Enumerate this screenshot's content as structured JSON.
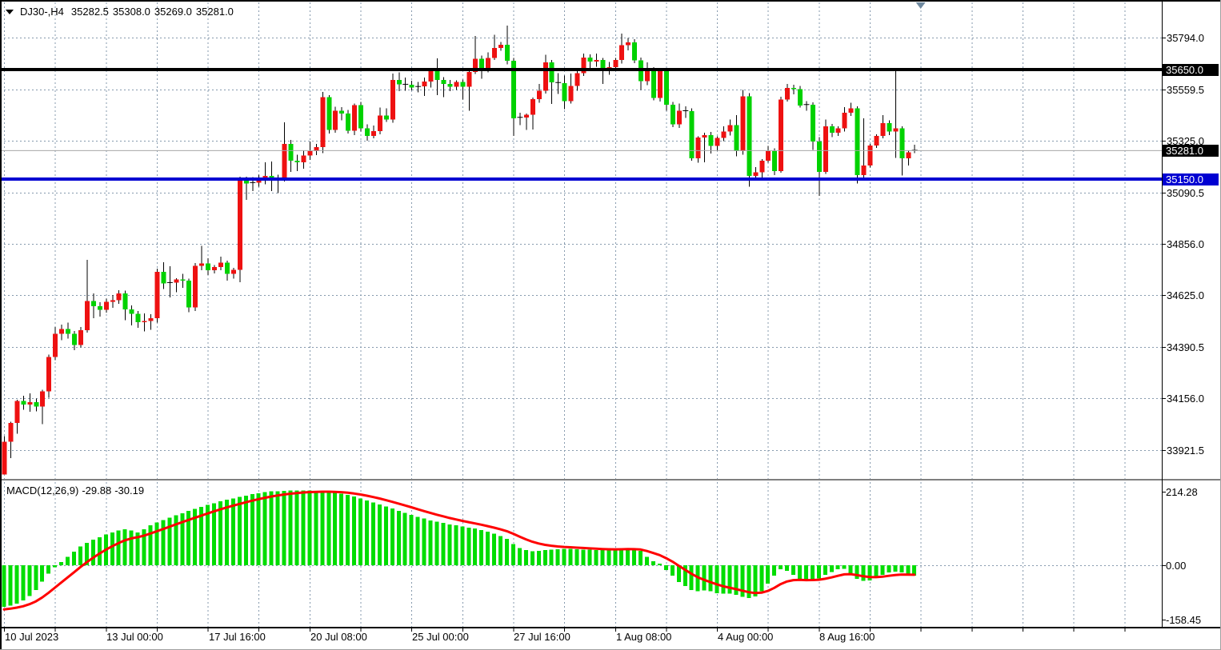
{
  "header": {
    "symbol_period": "DJ30-,H4",
    "open": "35282.5",
    "high": "35308.0",
    "low": "35269.0",
    "close": "35281.0"
  },
  "colors": {
    "bull_body": "#ee1111",
    "bear_body": "#00d200",
    "wick": "#000000",
    "macd_hist": "#00dd00",
    "macd_signal": "#ff0000",
    "resistance_line": "#000000",
    "support_line": "#0000d2",
    "current_price_line": "#a6a6a6",
    "grid": "#8599AD",
    "badge_black": "#000000",
    "badge_blue": "#0000d2",
    "shift_marker": "#708AA0"
  },
  "chart_data": {
    "type": "candlestick",
    "symbol": "DJ30-",
    "timeframe": "H4",
    "price_axis": {
      "labels": [
        "35794.0",
        "35559.5",
        "35325.0",
        "35090.5",
        "34856.0",
        "34625.0",
        "34390.5",
        "34156.0",
        "33921.5"
      ],
      "badges": [
        {
          "text": "35650.0",
          "value": 35650.0,
          "role": "resistance-level"
        },
        {
          "text": "35281.0",
          "value": 35281.0,
          "role": "current-price"
        },
        {
          "text": "35150.0",
          "value": 35150.0,
          "role": "support-level"
        }
      ]
    },
    "time_axis": {
      "labels": [
        {
          "text": "10 Jul 2023",
          "bar": 0
        },
        {
          "text": "13 Jul 00:00",
          "bar": 16
        },
        {
          "text": "17 Jul 16:00",
          "bar": 32
        },
        {
          "text": "20 Jul 08:00",
          "bar": 48
        },
        {
          "text": "25 Jul 00:00",
          "bar": 64
        },
        {
          "text": "27 Jul 16:00",
          "bar": 80
        },
        {
          "text": "1 Aug 08:00",
          "bar": 96
        },
        {
          "text": "4 Aug 00:00",
          "bar": 112
        },
        {
          "text": "8 Aug 16:00",
          "bar": 128
        }
      ]
    },
    "levels": {
      "resistance": 35650.0,
      "support": 35150.0,
      "current": 35281.0
    },
    "candles": [
      [
        33810,
        33985,
        33835,
        33960
      ],
      [
        33960,
        34050,
        33885,
        34045
      ],
      [
        34045,
        34150,
        33995,
        34145
      ],
      [
        34145,
        34168,
        34105,
        34128
      ],
      [
        34128,
        34180,
        34095,
        34140
      ],
      [
        34140,
        34155,
        34098,
        34120
      ],
      [
        34120,
        34195,
        34040,
        34188
      ],
      [
        34188,
        34355,
        34160,
        34345
      ],
      [
        34345,
        34480,
        34330,
        34450
      ],
      [
        34450,
        34492,
        34420,
        34472
      ],
      [
        34472,
        34500,
        34428,
        34450
      ],
      [
        34450,
        34462,
        34375,
        34398
      ],
      [
        34398,
        34480,
        34388,
        34466
      ],
      [
        34466,
        34785,
        34455,
        34598
      ],
      [
        34598,
        34632,
        34520,
        34575
      ],
      [
        34575,
        34592,
        34528,
        34558
      ],
      [
        34558,
        34610,
        34545,
        34595
      ],
      [
        34595,
        34625,
        34568,
        34602
      ],
      [
        34602,
        34648,
        34586,
        34632
      ],
      [
        34632,
        34645,
        34512,
        34560
      ],
      [
        34560,
        34578,
        34488,
        34540
      ],
      [
        34540,
        34552,
        34476,
        34502
      ],
      [
        34502,
        34542,
        34460,
        34508
      ],
      [
        34508,
        34538,
        34468,
        34520
      ],
      [
        34520,
        34745,
        34500,
        34730
      ],
      [
        34730,
        34775,
        34652,
        34678
      ],
      [
        34678,
        34756,
        34614,
        34682
      ],
      [
        34682,
        34702,
        34638,
        34696
      ],
      [
        34696,
        34722,
        34658,
        34690
      ],
      [
        34690,
        34700,
        34548,
        34570
      ],
      [
        34570,
        34770,
        34552,
        34758
      ],
      [
        34758,
        34848,
        34738,
        34768
      ],
      [
        34768,
        34792,
        34716,
        34738
      ],
      [
        34738,
        34762,
        34724,
        34752
      ],
      [
        34752,
        34800,
        34738,
        34772
      ],
      [
        34772,
        34782,
        34690,
        34722
      ],
      [
        34722,
        34748,
        34700,
        34740
      ],
      [
        34740,
        35162,
        34683,
        35155
      ],
      [
        35155,
        35162,
        35057,
        35132
      ],
      [
        35132,
        35160,
        35098,
        35136
      ],
      [
        35136,
        35172,
        35118,
        35148
      ],
      [
        35148,
        35228,
        35128,
        35166
      ],
      [
        35166,
        35232,
        35098,
        35152
      ],
      [
        35152,
        35172,
        35088,
        35158
      ],
      [
        35158,
        35410,
        35140,
        35312
      ],
      [
        35312,
        35330,
        35185,
        35235
      ],
      [
        35235,
        35262,
        35188,
        35228
      ],
      [
        35228,
        35282,
        35198,
        35258
      ],
      [
        35258,
        35322,
        35238,
        35278
      ],
      [
        35278,
        35312,
        35260,
        35296
      ],
      [
        35296,
        35548,
        35270,
        35523
      ],
      [
        35523,
        35532,
        35358,
        35375
      ],
      [
        35375,
        35480,
        35362,
        35462
      ],
      [
        35462,
        35478,
        35418,
        35450
      ],
      [
        35450,
        35466,
        35358,
        35372
      ],
      [
        35372,
        35495,
        35352,
        35488
      ],
      [
        35488,
        35502,
        35368,
        35382
      ],
      [
        35382,
        35400,
        35326,
        35348
      ],
      [
        35348,
        35394,
        35336,
        35370
      ],
      [
        35370,
        35476,
        35354,
        35440
      ],
      [
        35440,
        35472,
        35412,
        35422
      ],
      [
        35422,
        35631,
        35408,
        35602
      ],
      [
        35602,
        35636,
        35550,
        35582
      ],
      [
        35582,
        35612,
        35552,
        35580
      ],
      [
        35580,
        35598,
        35554,
        35568
      ],
      [
        35568,
        35592,
        35546,
        35572
      ],
      [
        35572,
        35613,
        35529,
        35594
      ],
      [
        35594,
        35650,
        35568,
        35642
      ],
      [
        35642,
        35699,
        35533,
        35601
      ],
      [
        35601,
        35614,
        35523,
        35583
      ],
      [
        35583,
        35602,
        35550,
        35570
      ],
      [
        35570,
        35600,
        35556,
        35592
      ],
      [
        35592,
        35604,
        35512,
        35570
      ],
      [
        35570,
        35645,
        35462,
        35638
      ],
      [
        35638,
        35802,
        35628,
        35697
      ],
      [
        35697,
        35712,
        35608,
        35648
      ],
      [
        35648,
        35727,
        35636,
        35702
      ],
      [
        35702,
        35806,
        35692,
        35746
      ],
      [
        35746,
        35774,
        35734,
        35762
      ],
      [
        35762,
        35848,
        35672,
        35688
      ],
      [
        35688,
        35702,
        35348,
        35428
      ],
      [
        35428,
        35452,
        35396,
        35432
      ],
      [
        35432,
        35450,
        35374,
        35444
      ],
      [
        35444,
        35522,
        35376,
        35514
      ],
      [
        35514,
        35584,
        35498,
        35552
      ],
      [
        35552,
        35716,
        35540,
        35681
      ],
      [
        35681,
        35692,
        35493,
        35590
      ],
      [
        35590,
        35632,
        35538,
        35588
      ],
      [
        35588,
        35622,
        35470,
        35506
      ],
      [
        35506,
        35630,
        35494,
        35574
      ],
      [
        35574,
        35652,
        35552,
        35632
      ],
      [
        35632,
        35721,
        35620,
        35703
      ],
      [
        35703,
        35718,
        35656,
        35686
      ],
      [
        35686,
        35722,
        35662,
        35692
      ],
      [
        35692,
        35702,
        35584,
        35652
      ],
      [
        35652,
        35684,
        35626,
        35660
      ],
      [
        35660,
        35702,
        35646,
        35692
      ],
      [
        35692,
        35813,
        35676,
        35760
      ],
      [
        35760,
        35792,
        35736,
        35772
      ],
      [
        35772,
        35786,
        35678,
        35690
      ],
      [
        35690,
        35704,
        35556,
        35596
      ],
      [
        35596,
        35682,
        35578,
        35645
      ],
      [
        35645,
        35660,
        35510,
        35520
      ],
      [
        35520,
        35650,
        35504,
        35642
      ],
      [
        35642,
        35656,
        35462,
        35490
      ],
      [
        35490,
        35502,
        35388,
        35400
      ],
      [
        35400,
        35494,
        35384,
        35462
      ],
      [
        35462,
        35482,
        35430,
        35460
      ],
      [
        35460,
        35472,
        35236,
        35246
      ],
      [
        35246,
        35346,
        35226,
        35340
      ],
      [
        35340,
        35362,
        35228,
        35352
      ],
      [
        35352,
        35366,
        35268,
        35302
      ],
      [
        35302,
        35346,
        35278,
        35338
      ],
      [
        35338,
        35392,
        35324,
        35368
      ],
      [
        35368,
        35422,
        35350,
        35396
      ],
      [
        35396,
        35442,
        35256,
        35278
      ],
      [
        35278,
        35556,
        35262,
        35528
      ],
      [
        35528,
        35542,
        35118,
        35166
      ],
      [
        35166,
        35206,
        35148,
        35182
      ],
      [
        35182,
        35242,
        35154,
        35236
      ],
      [
        35236,
        35302,
        35226,
        35278
      ],
      [
        35278,
        35292,
        35170,
        35188
      ],
      [
        35188,
        35526,
        35180,
        35512
      ],
      [
        35512,
        35584,
        35504,
        35565
      ],
      [
        35565,
        35580,
        35536,
        35560
      ],
      [
        35560,
        35574,
        35476,
        35486
      ],
      [
        35486,
        35506,
        35462,
        35490
      ],
      [
        35490,
        35500,
        35285,
        35322
      ],
      [
        35322,
        35342,
        35075,
        35185
      ],
      [
        35185,
        35422,
        35176,
        35392
      ],
      [
        35392,
        35402,
        35342,
        35362
      ],
      [
        35362,
        35392,
        35348,
        35382
      ],
      [
        35382,
        35478,
        35368,
        35452
      ],
      [
        35452,
        35498,
        35438,
        35472
      ],
      [
        35472,
        35482,
        35131,
        35170
      ],
      [
        35170,
        35427,
        35158,
        35214
      ],
      [
        35214,
        35312,
        35204,
        35304
      ],
      [
        35304,
        35354,
        35294,
        35348
      ],
      [
        35348,
        35442,
        35336,
        35405
      ],
      [
        35405,
        35418,
        35352,
        35368
      ],
      [
        35368,
        35645,
        35248,
        35382
      ],
      [
        35382,
        35392,
        35168,
        35246
      ],
      [
        35246,
        35282,
        35214,
        35274
      ],
      [
        35282.5,
        35308,
        35269,
        35281
      ]
    ],
    "macd": {
      "label": "MACD(12,26,9)",
      "main": "-29.88",
      "signal": "-30.19",
      "signal_period": 9,
      "signal_start": -130.5,
      "axis_labels": [
        "214.28",
        "0.00",
        "-158.45"
      ],
      "hist": [
        -121,
        -118,
        -112,
        -103,
        -90,
        -72,
        -48,
        -25,
        -6,
        9,
        24,
        40,
        55,
        65,
        75,
        82,
        90,
        96,
        101,
        105,
        101,
        96,
        105,
        117,
        125,
        132,
        139,
        146,
        152,
        158,
        164,
        170,
        176,
        181,
        186,
        191,
        195,
        199,
        203,
        207,
        210,
        213,
        215,
        216,
        217,
        218,
        218,
        218,
        218,
        217,
        216,
        214,
        212,
        209,
        205,
        200,
        195,
        189,
        183,
        177,
        171,
        165,
        159,
        153,
        147,
        141,
        136,
        131,
        127,
        123,
        119,
        116,
        113,
        110,
        107,
        103,
        98,
        92,
        85,
        77,
        62,
        50,
        44,
        41,
        42,
        44,
        46,
        47,
        48,
        48,
        47,
        46,
        45,
        44,
        44,
        44,
        45,
        48,
        49,
        46,
        42,
        24,
        12,
        5,
        -14,
        -30,
        -49,
        -61,
        -72,
        -76,
        -73,
        -76,
        -81,
        -83,
        -83,
        -86,
        -92,
        -96,
        -91,
        -76,
        -54,
        -30,
        -12,
        -16,
        -28,
        -40,
        -46,
        -42,
        -38,
        -28,
        -20,
        -12,
        -10,
        -23,
        -40,
        -46,
        -44,
        -35,
        -28,
        -21,
        -19,
        -21,
        -28,
        -29.88
      ]
    }
  }
}
